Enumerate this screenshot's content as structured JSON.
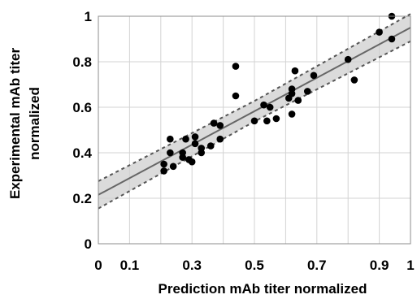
{
  "chart_data": {
    "type": "scatter",
    "xlabel": "Prediction mAb titer normalized",
    "ylabel_lines": [
      "Experimental mAb titer",
      "normalized"
    ],
    "xlim": [
      0,
      1
    ],
    "ylim": [
      0,
      1
    ],
    "x_ticks": [
      {
        "value": 0,
        "label": "0"
      },
      {
        "value": 0.1,
        "label": "0.1"
      },
      {
        "value": 0.3,
        "label": "0.3"
      },
      {
        "value": 0.5,
        "label": "0.5"
      },
      {
        "value": 0.7,
        "label": "0.7"
      },
      {
        "value": 0.9,
        "label": "0.9"
      },
      {
        "value": 1,
        "label": "1"
      }
    ],
    "y_ticks": [
      {
        "value": 0,
        "label": "0"
      },
      {
        "value": 0.2,
        "label": "0.2"
      },
      {
        "value": 0.4,
        "label": "0.4"
      },
      {
        "value": 0.6,
        "label": "0.6"
      },
      {
        "value": 0.8,
        "label": "0.8"
      },
      {
        "value": 1,
        "label": "1"
      }
    ],
    "x_gridlines": [
      0.1,
      0.2,
      0.3,
      0.4,
      0.5,
      0.6,
      0.7,
      0.8,
      0.9
    ],
    "y_gridlines": [
      0.2,
      0.4,
      0.6,
      0.8
    ],
    "grid": true,
    "fit_line": {
      "intercept": 0.215,
      "slope": 0.735
    },
    "confidence_band": {
      "lower_offset": [
        0.06,
        0.045,
        0.06
      ],
      "upper_offset": [
        0.06,
        0.045,
        0.06
      ],
      "at_x": [
        0,
        0.5,
        1
      ]
    },
    "points": [
      {
        "x": 0.21,
        "y": 0.32
      },
      {
        "x": 0.21,
        "y": 0.35
      },
      {
        "x": 0.23,
        "y": 0.4
      },
      {
        "x": 0.23,
        "y": 0.46
      },
      {
        "x": 0.24,
        "y": 0.34
      },
      {
        "x": 0.27,
        "y": 0.4
      },
      {
        "x": 0.27,
        "y": 0.38
      },
      {
        "x": 0.28,
        "y": 0.46
      },
      {
        "x": 0.29,
        "y": 0.37
      },
      {
        "x": 0.3,
        "y": 0.36
      },
      {
        "x": 0.31,
        "y": 0.44
      },
      {
        "x": 0.31,
        "y": 0.47
      },
      {
        "x": 0.33,
        "y": 0.4
      },
      {
        "x": 0.33,
        "y": 0.42
      },
      {
        "x": 0.36,
        "y": 0.43
      },
      {
        "x": 0.37,
        "y": 0.53
      },
      {
        "x": 0.39,
        "y": 0.52
      },
      {
        "x": 0.39,
        "y": 0.46
      },
      {
        "x": 0.44,
        "y": 0.78
      },
      {
        "x": 0.44,
        "y": 0.65
      },
      {
        "x": 0.5,
        "y": 0.54
      },
      {
        "x": 0.53,
        "y": 0.61
      },
      {
        "x": 0.54,
        "y": 0.54
      },
      {
        "x": 0.55,
        "y": 0.6
      },
      {
        "x": 0.57,
        "y": 0.55
      },
      {
        "x": 0.61,
        "y": 0.64
      },
      {
        "x": 0.62,
        "y": 0.66
      },
      {
        "x": 0.62,
        "y": 0.68
      },
      {
        "x": 0.62,
        "y": 0.57
      },
      {
        "x": 0.63,
        "y": 0.76
      },
      {
        "x": 0.64,
        "y": 0.63
      },
      {
        "x": 0.67,
        "y": 0.67
      },
      {
        "x": 0.69,
        "y": 0.74
      },
      {
        "x": 0.8,
        "y": 0.81
      },
      {
        "x": 0.82,
        "y": 0.72
      },
      {
        "x": 0.9,
        "y": 0.93
      },
      {
        "x": 0.94,
        "y": 1.0
      },
      {
        "x": 0.94,
        "y": 0.9
      }
    ]
  }
}
